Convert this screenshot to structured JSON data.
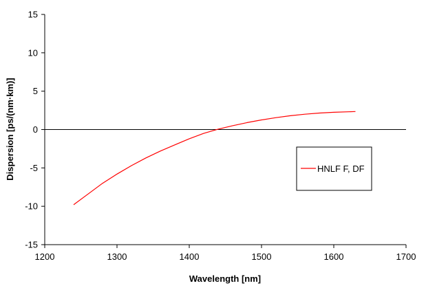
{
  "chart_data": {
    "type": "line",
    "title": "",
    "xlabel": "Wavelength [nm]",
    "ylabel": "Dispersion [ps/(nm·km)]",
    "xlim": [
      1200,
      1700
    ],
    "ylim": [
      -15,
      15
    ],
    "xticks": [
      1200,
      1300,
      1400,
      1500,
      1600,
      1700
    ],
    "yticks": [
      -15,
      -10,
      -5,
      0,
      5,
      10,
      15
    ],
    "grid": false,
    "zero_line": true,
    "legend_position": "right",
    "series": [
      {
        "name": "HNLF F, DF",
        "color": "#ff0000",
        "x": [
          1240,
          1260,
          1280,
          1300,
          1320,
          1340,
          1360,
          1380,
          1400,
          1420,
          1440,
          1460,
          1480,
          1500,
          1520,
          1540,
          1560,
          1580,
          1600,
          1630
        ],
        "y": [
          -9.8,
          -8.4,
          -7.0,
          -5.8,
          -4.7,
          -3.7,
          -2.8,
          -2.0,
          -1.2,
          -0.5,
          0.05,
          0.5,
          0.9,
          1.25,
          1.55,
          1.8,
          2.0,
          2.15,
          2.25,
          2.35
        ]
      }
    ]
  }
}
